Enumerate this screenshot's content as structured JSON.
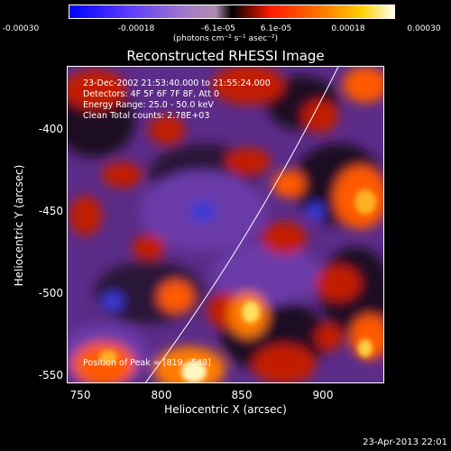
{
  "colorbar": {
    "ticks": [
      "-0.00030",
      "-0.00018",
      "-6.1e-05",
      "6.1e-05",
      "0.00018",
      "0.00030"
    ],
    "unit": "(photons cm⁻² s⁻¹ asec⁻²)"
  },
  "title": "Reconstructed RHESSI Image",
  "info": {
    "time": "23-Dec-2002 21:53:40.000 to 21:55:24.000",
    "detectors": "Detectors: 4F 5F 6F 7F 8F, Att 0",
    "energy": "Energy Range: 25.0 - 50.0 keV",
    "clean": "Clean    Total counts: 2.78E+03",
    "peak": "Position of Peak = [819, -548]"
  },
  "axes": {
    "xlabel": "Heliocentric X (arcsec)",
    "ylabel": "Heliocentric Y (arcsec)",
    "xticks": [
      "750",
      "800",
      "850",
      "900"
    ],
    "yticks": [
      "-400",
      "-450",
      "-500",
      "-550"
    ]
  },
  "timestamp": "23-Apr-2013 22:01"
}
